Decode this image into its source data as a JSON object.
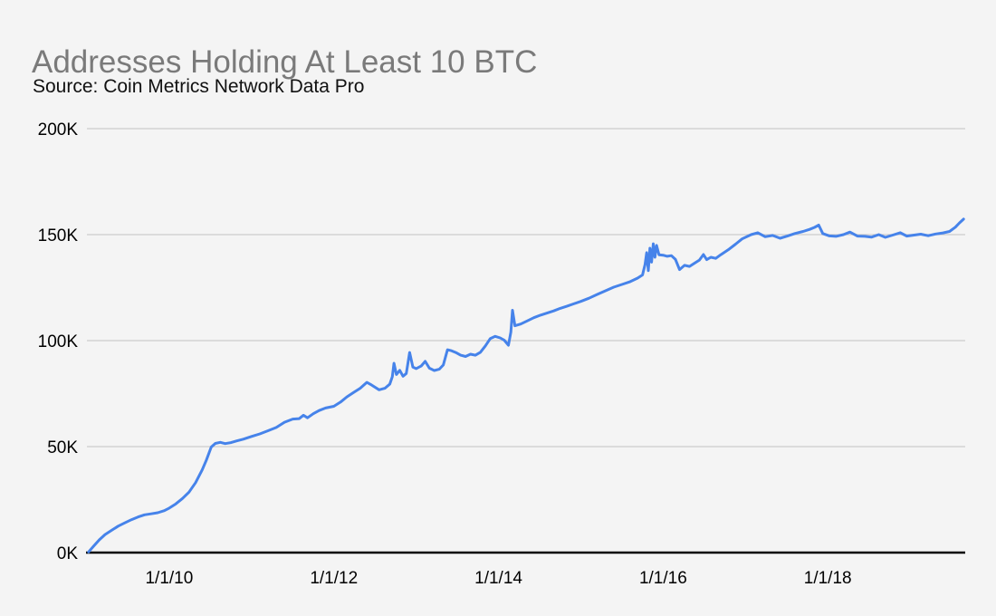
{
  "chart": {
    "title": "Addresses Holding At Least 10 BTC",
    "subtitle": "Source: Coin Metrics Network Data Pro"
  },
  "colors": {
    "background": "#f4f4f4",
    "line": "#4683ea",
    "gridline": "#cccccc",
    "axis": "#000000",
    "title_text": "#7a7a7a",
    "subtitle_text": "#111111",
    "tick_text": "#000000"
  },
  "chart_data": {
    "type": "line",
    "title": "Addresses Holding At Least 10 BTC",
    "subtitle": "Source: Coin Metrics Network Data Pro",
    "xlabel": "",
    "ylabel": "",
    "x_unit": "decimal_year",
    "y_unit": "addresses_thousands",
    "xlim": [
      2009.0,
      2019.67
    ],
    "ylim": [
      0,
      200
    ],
    "grid": "horizontal",
    "legend_position": "none",
    "y_ticks": {
      "values": [
        0,
        50,
        100,
        150,
        200
      ],
      "labels": [
        "0K",
        "50K",
        "100K",
        "150K",
        "200K"
      ]
    },
    "x_ticks": {
      "values": [
        2010,
        2012,
        2014,
        2016,
        2018
      ],
      "labels": [
        "1/1/10",
        "1/1/12",
        "1/1/14",
        "1/1/16",
        "1/1/18"
      ]
    },
    "series": [
      {
        "name": "Addresses Holding At Least 10 BTC",
        "color": "#4683ea",
        "points": [
          [
            2009.02,
            0.3
          ],
          [
            2009.08,
            3
          ],
          [
            2009.15,
            6
          ],
          [
            2009.22,
            8.5
          ],
          [
            2009.3,
            10.5
          ],
          [
            2009.38,
            12.5
          ],
          [
            2009.46,
            14
          ],
          [
            2009.54,
            15.5
          ],
          [
            2009.62,
            16.8
          ],
          [
            2009.7,
            17.8
          ],
          [
            2009.78,
            18.3
          ],
          [
            2009.86,
            18.8
          ],
          [
            2009.94,
            19.8
          ],
          [
            2010.0,
            21
          ],
          [
            2010.08,
            23
          ],
          [
            2010.16,
            25.5
          ],
          [
            2010.24,
            28.5
          ],
          [
            2010.32,
            33
          ],
          [
            2010.4,
            39
          ],
          [
            2010.45,
            43.5
          ],
          [
            2010.51,
            49.8
          ],
          [
            2010.56,
            51.5
          ],
          [
            2010.62,
            52
          ],
          [
            2010.68,
            51.4
          ],
          [
            2010.75,
            51.9
          ],
          [
            2010.82,
            52.7
          ],
          [
            2010.9,
            53.5
          ],
          [
            2011.0,
            54.8
          ],
          [
            2011.1,
            56
          ],
          [
            2011.2,
            57.5
          ],
          [
            2011.3,
            59
          ],
          [
            2011.4,
            61.5
          ],
          [
            2011.5,
            63
          ],
          [
            2011.58,
            63.2
          ],
          [
            2011.63,
            64.8
          ],
          [
            2011.68,
            63.6
          ],
          [
            2011.75,
            65.5
          ],
          [
            2011.82,
            67
          ],
          [
            2011.9,
            68.2
          ],
          [
            2012.0,
            69
          ],
          [
            2012.08,
            71
          ],
          [
            2012.16,
            73.5
          ],
          [
            2012.24,
            75.5
          ],
          [
            2012.32,
            77.5
          ],
          [
            2012.4,
            80.3
          ],
          [
            2012.46,
            79
          ],
          [
            2012.55,
            76.8
          ],
          [
            2012.62,
            77.5
          ],
          [
            2012.68,
            79.5
          ],
          [
            2012.71,
            83
          ],
          [
            2012.73,
            89.3
          ],
          [
            2012.76,
            84
          ],
          [
            2012.8,
            86
          ],
          [
            2012.84,
            83.2
          ],
          [
            2012.88,
            84.5
          ],
          [
            2012.92,
            94.4
          ],
          [
            2012.96,
            87.5
          ],
          [
            2013.0,
            86.8
          ],
          [
            2013.06,
            88
          ],
          [
            2013.11,
            90.2
          ],
          [
            2013.16,
            87
          ],
          [
            2013.22,
            85.9
          ],
          [
            2013.28,
            86.5
          ],
          [
            2013.33,
            88.5
          ],
          [
            2013.38,
            95.7
          ],
          [
            2013.43,
            95.2
          ],
          [
            2013.48,
            94.4
          ],
          [
            2013.54,
            93.1
          ],
          [
            2013.6,
            92.5
          ],
          [
            2013.66,
            93.6
          ],
          [
            2013.72,
            93.1
          ],
          [
            2013.78,
            94.5
          ],
          [
            2013.84,
            97.5
          ],
          [
            2013.9,
            101
          ],
          [
            2013.96,
            102
          ],
          [
            2014.02,
            101.3
          ],
          [
            2014.07,
            100.2
          ],
          [
            2014.12,
            97.8
          ],
          [
            2014.15,
            104
          ],
          [
            2014.17,
            114.3
          ],
          [
            2014.2,
            107
          ],
          [
            2014.27,
            107.8
          ],
          [
            2014.35,
            109.3
          ],
          [
            2014.43,
            110.8
          ],
          [
            2014.51,
            112
          ],
          [
            2014.59,
            113
          ],
          [
            2014.67,
            114
          ],
          [
            2014.75,
            115.2
          ],
          [
            2014.83,
            116.2
          ],
          [
            2014.91,
            117.3
          ],
          [
            2015.0,
            118.5
          ],
          [
            2015.1,
            120
          ],
          [
            2015.2,
            121.8
          ],
          [
            2015.3,
            123.5
          ],
          [
            2015.4,
            125.2
          ],
          [
            2015.5,
            126.5
          ],
          [
            2015.6,
            127.8
          ],
          [
            2015.69,
            129.5
          ],
          [
            2015.75,
            131
          ],
          [
            2015.78,
            135.9
          ],
          [
            2015.8,
            141.5
          ],
          [
            2015.82,
            133
          ],
          [
            2015.84,
            143.6
          ],
          [
            2015.86,
            137
          ],
          [
            2015.88,
            145.7
          ],
          [
            2015.9,
            139.3
          ],
          [
            2015.92,
            144.9
          ],
          [
            2015.95,
            140.5
          ],
          [
            2016.0,
            140.3
          ],
          [
            2016.05,
            139.8
          ],
          [
            2016.1,
            140.1
          ],
          [
            2016.15,
            138.3
          ],
          [
            2016.2,
            133.5
          ],
          [
            2016.26,
            135.5
          ],
          [
            2016.32,
            135
          ],
          [
            2016.38,
            136.5
          ],
          [
            2016.44,
            138
          ],
          [
            2016.49,
            140.6
          ],
          [
            2016.53,
            138.2
          ],
          [
            2016.58,
            139.3
          ],
          [
            2016.64,
            138.8
          ],
          [
            2016.7,
            140.5
          ],
          [
            2016.79,
            142.8
          ],
          [
            2016.88,
            145.5
          ],
          [
            2016.96,
            148
          ],
          [
            2017.07,
            150
          ],
          [
            2017.15,
            150.9
          ],
          [
            2017.24,
            149
          ],
          [
            2017.33,
            149.6
          ],
          [
            2017.42,
            148.3
          ],
          [
            2017.51,
            149.3
          ],
          [
            2017.6,
            150.5
          ],
          [
            2017.7,
            151.5
          ],
          [
            2017.78,
            152.5
          ],
          [
            2017.84,
            153.4
          ],
          [
            2017.89,
            154.5
          ],
          [
            2017.94,
            150.5
          ],
          [
            2018.02,
            149.4
          ],
          [
            2018.1,
            149.2
          ],
          [
            2018.19,
            150
          ],
          [
            2018.27,
            151.2
          ],
          [
            2018.36,
            149.3
          ],
          [
            2018.45,
            149.2
          ],
          [
            2018.53,
            148.8
          ],
          [
            2018.62,
            150
          ],
          [
            2018.7,
            148.7
          ],
          [
            2018.79,
            149.8
          ],
          [
            2018.88,
            150.9
          ],
          [
            2018.96,
            149.3
          ],
          [
            2019.05,
            149.8
          ],
          [
            2019.13,
            150.2
          ],
          [
            2019.22,
            149.5
          ],
          [
            2019.31,
            150.3
          ],
          [
            2019.4,
            150.8
          ],
          [
            2019.48,
            151.5
          ],
          [
            2019.55,
            153.5
          ],
          [
            2019.6,
            155.5
          ],
          [
            2019.65,
            157.3
          ]
        ]
      }
    ]
  }
}
